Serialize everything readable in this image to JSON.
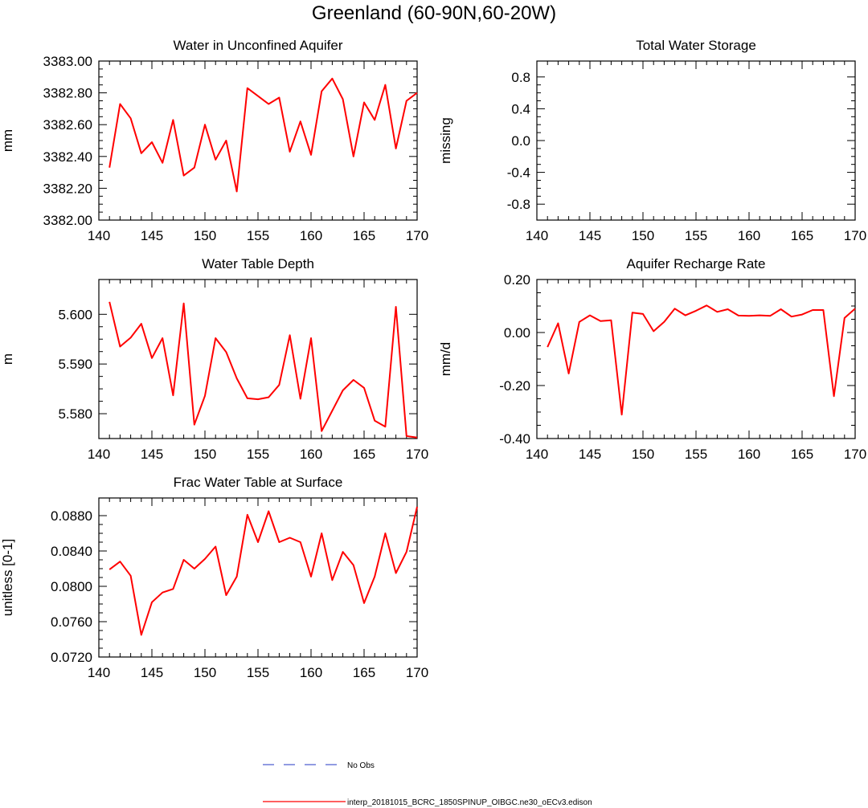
{
  "figure_title": "Greenland (60-90N,60-20W)",
  "colors": {
    "model_line": "#ff0000",
    "obs_line": "#4f5fd0",
    "axis": "#000000"
  },
  "legend": {
    "obs_label": "No Obs",
    "model_label": "interp_20181015_BCRC_1850SPINUP_OIBGC.ne30_oECv3.edison"
  },
  "chart_data": [
    {
      "id": "water-unconfined-aquifer",
      "type": "line",
      "title": "Water in Unconfined Aquifer",
      "ylabel": "mm",
      "xlabel": "",
      "xlim": [
        140,
        170
      ],
      "ylim": [
        3382.0,
        3383.0
      ],
      "xticks": [
        140,
        145,
        150,
        155,
        160,
        165,
        170
      ],
      "xtick_labels": [
        "140",
        "145",
        "150",
        "155",
        "160",
        "165",
        "170"
      ],
      "yticks": [
        3382.0,
        3382.2,
        3382.4,
        3382.6,
        3382.8,
        3383.0
      ],
      "ytick_labels": [
        "3382.00",
        "3382.20",
        "3382.40",
        "3382.60",
        "3382.80",
        "3383.00"
      ],
      "series": [
        {
          "name": "interp_20181015_BCRC_1850SPINUP_OIBGC.ne30_oECv3.edison",
          "x": [
            141,
            142,
            143,
            144,
            145,
            146,
            147,
            148,
            149,
            150,
            151,
            152,
            153,
            154,
            155,
            156,
            157,
            158,
            159,
            160,
            161,
            162,
            163,
            164,
            165,
            166,
            167,
            168,
            169,
            170
          ],
          "values": [
            3382.33,
            3382.73,
            3382.64,
            3382.42,
            3382.49,
            3382.36,
            3382.63,
            3382.28,
            3382.33,
            3382.6,
            3382.38,
            3382.5,
            3382.18,
            3382.83,
            3382.78,
            3382.73,
            3382.77,
            3382.43,
            3382.62,
            3382.41,
            3382.81,
            3382.89,
            3382.76,
            3382.4,
            3382.74,
            3382.63,
            3382.85,
            3382.45,
            3382.75,
            3382.8
          ]
        }
      ]
    },
    {
      "id": "total-water-storage",
      "type": "line",
      "title": "Total Water Storage",
      "ylabel": "missing",
      "xlabel": "",
      "xlim": [
        140,
        170
      ],
      "ylim": [
        -1.0,
        1.0
      ],
      "xticks": [
        140,
        145,
        150,
        155,
        160,
        165,
        170
      ],
      "xtick_labels": [
        "140",
        "145",
        "150",
        "155",
        "160",
        "165",
        "170"
      ],
      "yticks": [
        -0.8,
        -0.4,
        0.0,
        0.4,
        0.8
      ],
      "ytick_labels": [
        "-0.8",
        "-0.4",
        "0.0",
        "0.4",
        "0.8"
      ],
      "series": []
    },
    {
      "id": "water-table-depth",
      "type": "line",
      "title": "Water Table Depth",
      "ylabel": "m",
      "xlabel": "",
      "xlim": [
        140,
        170
      ],
      "ylim": [
        5.575,
        5.607
      ],
      "xticks": [
        140,
        145,
        150,
        155,
        160,
        165,
        170
      ],
      "xtick_labels": [
        "140",
        "145",
        "150",
        "155",
        "160",
        "165",
        "170"
      ],
      "yticks": [
        5.58,
        5.59,
        5.6
      ],
      "ytick_labels": [
        "5.580",
        "5.590",
        "5.600"
      ],
      "series": [
        {
          "name": "interp_20181015_BCRC_1850SPINUP_OIBGC.ne30_oECv3.edison",
          "x": [
            141,
            142,
            143,
            144,
            145,
            146,
            147,
            148,
            149,
            150,
            151,
            152,
            153,
            154,
            155,
            156,
            157,
            158,
            159,
            160,
            161,
            162,
            163,
            164,
            165,
            166,
            167,
            168,
            169,
            170
          ],
          "values": [
            5.6025,
            5.5935,
            5.5953,
            5.5981,
            5.5912,
            5.5952,
            5.5837,
            5.6022,
            5.5778,
            5.5836,
            5.5952,
            5.5924,
            5.5871,
            5.5831,
            5.5829,
            5.5833,
            5.5858,
            5.5958,
            5.583,
            5.5952,
            5.5765,
            5.5806,
            5.5847,
            5.5868,
            5.5852,
            5.5786,
            5.5774,
            5.6015,
            5.5755,
            5.5752
          ]
        }
      ]
    },
    {
      "id": "aquifer-recharge-rate",
      "type": "line",
      "title": "Aquifer Recharge Rate",
      "ylabel": "mm/d",
      "xlabel": "",
      "xlim": [
        140,
        170
      ],
      "ylim": [
        -0.4,
        0.2
      ],
      "xticks": [
        140,
        145,
        150,
        155,
        160,
        165,
        170
      ],
      "xtick_labels": [
        "140",
        "145",
        "150",
        "155",
        "160",
        "165",
        "170"
      ],
      "yticks": [
        -0.4,
        -0.2,
        0.0,
        0.2
      ],
      "ytick_labels": [
        "-0.40",
        "-0.20",
        "0.00",
        "0.20"
      ],
      "series": [
        {
          "name": "interp_20181015_BCRC_1850SPINUP_OIBGC.ne30_oECv3.edison",
          "x": [
            141,
            142,
            143,
            144,
            145,
            146,
            147,
            148,
            149,
            150,
            151,
            152,
            153,
            154,
            155,
            156,
            157,
            158,
            159,
            160,
            161,
            162,
            163,
            164,
            165,
            166,
            167,
            168,
            169,
            170
          ],
          "values": [
            -0.055,
            0.035,
            -0.155,
            0.04,
            0.065,
            0.043,
            0.046,
            -0.31,
            0.075,
            0.07,
            0.005,
            0.04,
            0.09,
            0.065,
            0.082,
            0.102,
            0.078,
            0.088,
            0.064,
            0.063,
            0.065,
            0.063,
            0.088,
            0.06,
            0.068,
            0.085,
            0.085,
            -0.24,
            0.055,
            0.09
          ]
        }
      ]
    },
    {
      "id": "frac-water-table-surface",
      "type": "line",
      "title": "Frac Water Table at Surface",
      "ylabel": "unitless [0-1]",
      "xlabel": "",
      "xlim": [
        140,
        170
      ],
      "ylim": [
        0.072,
        0.09
      ],
      "xticks": [
        140,
        145,
        150,
        155,
        160,
        165,
        170
      ],
      "xtick_labels": [
        "140",
        "145",
        "150",
        "155",
        "160",
        "165",
        "170"
      ],
      "yticks": [
        0.072,
        0.076,
        0.08,
        0.084,
        0.088
      ],
      "ytick_labels": [
        "0.0720",
        "0.0760",
        "0.0800",
        "0.0840",
        "0.0880"
      ],
      "series": [
        {
          "name": "interp_20181015_BCRC_1850SPINUP_OIBGC.ne30_oECv3.edison",
          "x": [
            141,
            142,
            143,
            144,
            145,
            146,
            147,
            148,
            149,
            150,
            151,
            152,
            153,
            154,
            155,
            156,
            157,
            158,
            159,
            160,
            161,
            162,
            163,
            164,
            165,
            166,
            167,
            168,
            169,
            170
          ],
          "values": [
            0.0819,
            0.0828,
            0.0812,
            0.0745,
            0.0782,
            0.0793,
            0.0797,
            0.083,
            0.082,
            0.0831,
            0.0845,
            0.079,
            0.0811,
            0.0881,
            0.085,
            0.0885,
            0.085,
            0.0855,
            0.085,
            0.0811,
            0.086,
            0.0807,
            0.0839,
            0.0824,
            0.0781,
            0.0811,
            0.086,
            0.0815,
            0.0839,
            0.089
          ]
        }
      ]
    }
  ]
}
